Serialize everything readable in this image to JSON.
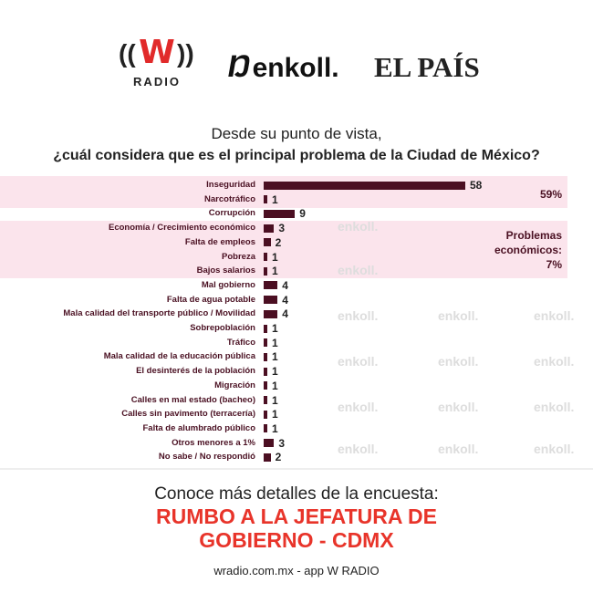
{
  "logos": {
    "wradio": "W",
    "wradio_sub": "RADIO",
    "enkoll": "enkoll.",
    "elpais": "EL PAÍS"
  },
  "question": {
    "line1": "Desde su punto de vista,",
    "line2": "¿cuál considera que es el principal problema de la Ciudad de México?"
  },
  "watermark": "enkoll.",
  "chart_data": {
    "type": "bar",
    "orientation": "horizontal",
    "title": "¿cuál considera que es el principal problema de la Ciudad de México?",
    "categories": [
      "Inseguridad",
      "Narcotráfico",
      "Corrupción",
      "Economía / Crecimiento económico",
      "Falta de empleos",
      "Pobreza",
      "Bajos salarios",
      "Mal gobierno",
      "Falta de agua potable",
      "Mala calidad del transporte público / Movilidad",
      "Sobrepoblación",
      "Tráfico",
      "Mala calidad de la educación pública",
      "El desinterés de la población",
      "Migración",
      "Calles en mal estado (bacheo)",
      "Calles sin pavimento (terracería)",
      "Falta de alumbrado público",
      "Otros menores a 1%",
      "No sabe / No respondió"
    ],
    "values": [
      58,
      1,
      9,
      3,
      2,
      1,
      1,
      4,
      4,
      4,
      1,
      1,
      1,
      1,
      1,
      1,
      1,
      1,
      3,
      2
    ],
    "bar_color": "#4b0f22",
    "highlight_color": "#fbe4ec",
    "annotations": [
      {
        "text": "59%",
        "group": [
          "Inseguridad",
          "Narcotráfico"
        ]
      },
      {
        "text": "Problemas económicos: 7%",
        "group": [
          "Economía / Crecimiento económico",
          "Falta de empleos",
          "Pobreza",
          "Bajos salarios"
        ]
      }
    ]
  },
  "annotations": {
    "security": "59%",
    "econ_l1": "Problemas",
    "econ_l2": "económicos:",
    "econ_l3": "7%"
  },
  "footer": {
    "line1": "Conoce más detalles de la encuesta:",
    "line2": "RUMBO A LA JEFATURA DE",
    "line3": "GOBIERNO - CDMX",
    "site": "wradio.com.mx - app W RADIO"
  }
}
